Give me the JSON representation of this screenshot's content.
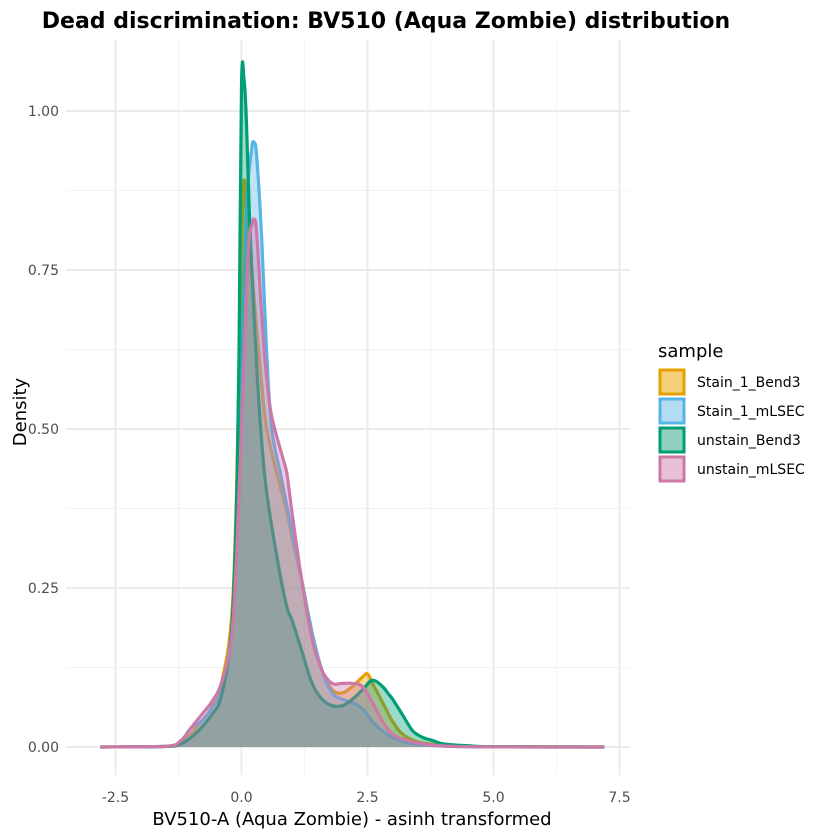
{
  "chart_data": {
    "type": "area",
    "title": "Dead discrimination: BV510 (Aqua Zombie) distribution",
    "xlabel": "BV510-A (Aqua Zombie) - asinh transformed",
    "ylabel": "Density",
    "xlim": [
      -2.8,
      7.2
    ],
    "ylim": [
      0,
      1.06
    ],
    "xticks": [
      -2.5,
      0,
      2.5,
      5,
      7.5
    ],
    "xtick_labels": [
      "-2.5",
      "0.0",
      "2.5",
      "5.0",
      "7.5"
    ],
    "yticks": [
      0,
      0.25,
      0.5,
      0.75,
      1.0
    ],
    "ytick_labels": [
      "0.00",
      "0.25",
      "0.50",
      "0.75",
      "1.00"
    ],
    "legend": {
      "title": "sample",
      "position": "right"
    },
    "grid": true,
    "series": [
      {
        "name": "Stain_1_Bend3",
        "color": "#E69F00",
        "fill": "#F5CE7A",
        "x": [
          -2.8,
          -1.5,
          -1.2,
          -1.0,
          -0.8,
          -0.6,
          -0.4,
          -0.2,
          -0.1,
          0.0,
          0.05,
          0.1,
          0.15,
          0.2,
          0.3,
          0.4,
          0.5,
          0.7,
          0.9,
          1.0,
          1.2,
          1.4,
          1.6,
          1.8,
          2.0,
          2.2,
          2.4,
          2.5,
          2.6,
          2.8,
          3.0,
          3.2,
          3.5,
          4.0,
          4.5,
          5.0,
          7.2
        ],
        "values": [
          0,
          0.001,
          0.005,
          0.02,
          0.04,
          0.06,
          0.1,
          0.2,
          0.4,
          0.78,
          0.89,
          0.84,
          0.78,
          0.75,
          0.66,
          0.57,
          0.5,
          0.43,
          0.37,
          0.33,
          0.26,
          0.18,
          0.12,
          0.09,
          0.085,
          0.095,
          0.11,
          0.115,
          0.1,
          0.07,
          0.04,
          0.02,
          0.008,
          0.003,
          0.001,
          0.0005,
          0
        ]
      },
      {
        "name": "Stain_1_mLSEC",
        "color": "#56B4E9",
        "fill": "#B3DCF3",
        "x": [
          -2.8,
          -1.5,
          -1.2,
          -1.0,
          -0.8,
          -0.6,
          -0.4,
          -0.2,
          -0.1,
          0.0,
          0.1,
          0.2,
          0.25,
          0.3,
          0.4,
          0.5,
          0.6,
          0.8,
          1.0,
          1.2,
          1.4,
          1.6,
          1.8,
          2.0,
          2.2,
          2.4,
          2.6,
          2.8,
          3.0,
          3.3,
          3.7,
          4.2,
          5.0,
          7.2
        ],
        "values": [
          0,
          0.001,
          0.01,
          0.03,
          0.04,
          0.06,
          0.09,
          0.18,
          0.32,
          0.6,
          0.85,
          0.94,
          0.95,
          0.93,
          0.8,
          0.62,
          0.5,
          0.42,
          0.34,
          0.26,
          0.18,
          0.12,
          0.085,
          0.075,
          0.07,
          0.06,
          0.04,
          0.025,
          0.015,
          0.007,
          0.003,
          0.001,
          0.0002,
          0
        ]
      },
      {
        "name": "unstain_Bend3",
        "color": "#009E73",
        "fill": "#8FD1BC",
        "x": [
          -2.8,
          -1.5,
          -1.2,
          -1.0,
          -0.8,
          -0.6,
          -0.4,
          -0.2,
          -0.1,
          -0.05,
          0.0,
          0.05,
          0.1,
          0.15,
          0.2,
          0.3,
          0.4,
          0.5,
          0.7,
          0.9,
          1.0,
          1.2,
          1.4,
          1.6,
          1.8,
          2.0,
          2.2,
          2.4,
          2.6,
          2.8,
          2.9,
          3.0,
          3.2,
          3.4,
          3.6,
          3.8,
          4.0,
          4.5,
          5.0,
          7.2
        ],
        "values": [
          0,
          0.001,
          0.005,
          0.015,
          0.03,
          0.05,
          0.08,
          0.18,
          0.38,
          0.62,
          1.04,
          1.05,
          0.98,
          0.85,
          0.76,
          0.6,
          0.48,
          0.4,
          0.3,
          0.22,
          0.2,
          0.15,
          0.1,
          0.075,
          0.065,
          0.065,
          0.075,
          0.09,
          0.105,
          0.095,
          0.085,
          0.075,
          0.05,
          0.025,
          0.015,
          0.01,
          0.005,
          0.002,
          0.0005,
          0
        ]
      },
      {
        "name": "unstain_mLSEC",
        "color": "#CC79A7",
        "fill": "#E8C1D6",
        "x": [
          -2.8,
          -1.5,
          -1.2,
          -1.0,
          -0.8,
          -0.6,
          -0.4,
          -0.2,
          -0.1,
          0.0,
          0.1,
          0.15,
          0.2,
          0.25,
          0.3,
          0.4,
          0.5,
          0.6,
          0.8,
          0.9,
          1.0,
          1.2,
          1.4,
          1.6,
          1.8,
          2.0,
          2.2,
          2.4,
          2.6,
          2.8,
          3.0,
          3.3,
          3.7,
          4.2,
          5.0,
          7.2
        ],
        "values": [
          0,
          0.001,
          0.01,
          0.03,
          0.05,
          0.07,
          0.1,
          0.17,
          0.3,
          0.5,
          0.72,
          0.8,
          0.82,
          0.83,
          0.81,
          0.68,
          0.58,
          0.52,
          0.46,
          0.43,
          0.37,
          0.26,
          0.17,
          0.12,
          0.1,
          0.1,
          0.1,
          0.095,
          0.07,
          0.04,
          0.02,
          0.01,
          0.004,
          0.001,
          0.0002,
          0
        ]
      }
    ]
  }
}
